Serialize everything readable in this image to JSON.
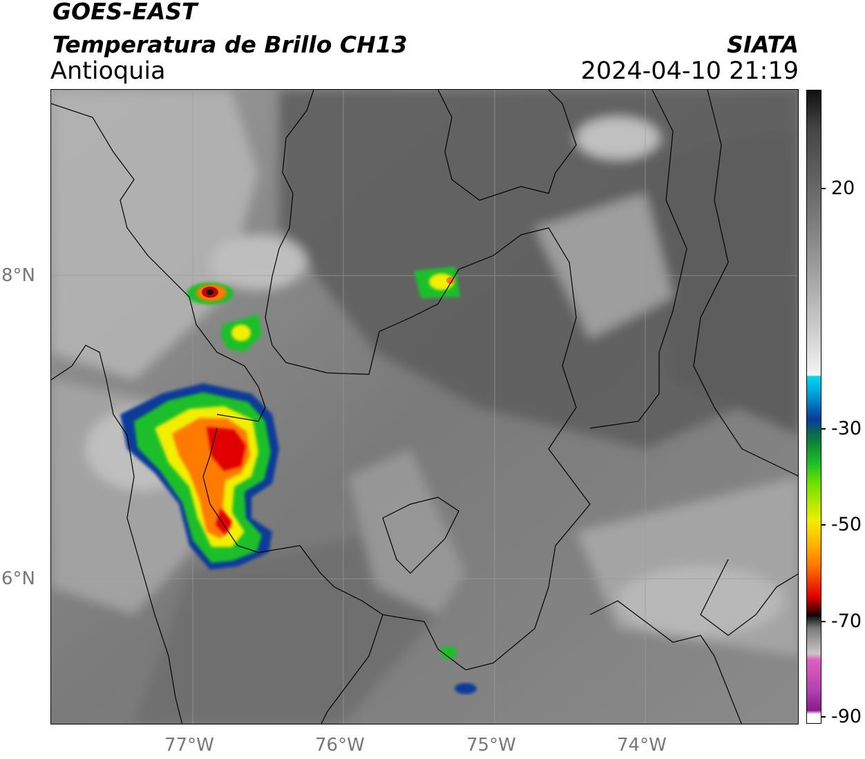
{
  "header": {
    "satellite": "GOES-EAST",
    "product": "Temperatura de Brillo CH13",
    "region": "Antioquia",
    "agency": "SIATA",
    "datetime": "2024-04-10 21:19"
  },
  "axes": {
    "longitude_labels": [
      "77°W",
      "76°W",
      "75°W",
      "74°W"
    ],
    "latitude_labels": [
      "8°N",
      "6°N"
    ]
  },
  "colorbar": {
    "tick_labels": [
      "20",
      "-30",
      "-50",
      "-70",
      "-90"
    ],
    "colors": {
      "cyan": "#00d8f0",
      "blue": "#0a3a9a",
      "green": "#1fbf2a",
      "yellow": "#f2ee00",
      "orange": "#ff7a00",
      "red": "#e00000",
      "black": "#0a0a0a",
      "pink": "#e060c0",
      "purple": "#8a1a8a"
    }
  }
}
